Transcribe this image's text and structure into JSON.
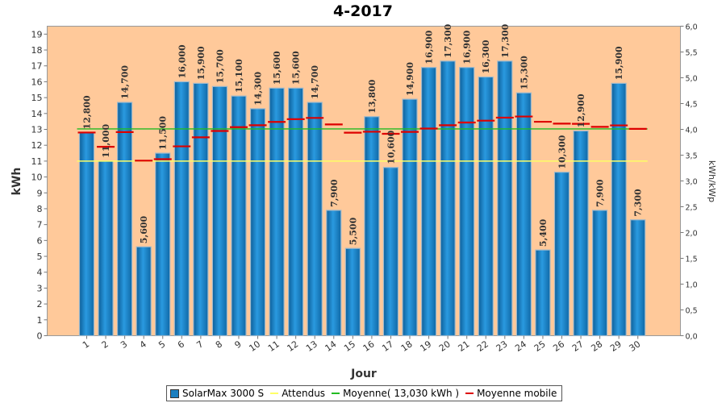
{
  "chart_data": {
    "type": "bar",
    "title": "4-2017",
    "xlabel": "Jour",
    "ylabel": "kWh",
    "y2label": "kWh/kWp",
    "ylim": [
      0,
      19.5
    ],
    "y2lim": [
      0,
      6.0
    ],
    "y_ticks": [
      "0",
      "1",
      "2",
      "3",
      "4",
      "5",
      "6",
      "7",
      "8",
      "9",
      "10",
      "11",
      "12",
      "13",
      "14",
      "15",
      "16",
      "17",
      "18",
      "19"
    ],
    "y2_ticks": [
      "0,0",
      "0,5",
      "1,0",
      "1,5",
      "2,0",
      "2,5",
      "3,0",
      "3,5",
      "4,0",
      "4,5",
      "5,0",
      "5,5",
      "6,0"
    ],
    "categories": [
      "1",
      "2",
      "3",
      "4",
      "5",
      "6",
      "7",
      "8",
      "9",
      "10",
      "11",
      "12",
      "13",
      "14",
      "15",
      "16",
      "17",
      "18",
      "19",
      "20",
      "21",
      "22",
      "23",
      "24",
      "25",
      "26",
      "27",
      "28",
      "29",
      "30"
    ],
    "series": [
      {
        "name": "SolarMax 3000 S",
        "values": [
          12.8,
          11.0,
          14.7,
          5.6,
          11.5,
          16.0,
          15.9,
          15.7,
          15.1,
          14.3,
          15.6,
          15.6,
          14.7,
          7.9,
          5.5,
          13.8,
          10.6,
          14.9,
          16.9,
          17.3,
          16.9,
          16.3,
          17.3,
          15.3,
          5.4,
          10.3,
          12.9,
          7.9,
          15.9,
          7.3
        ],
        "labels": [
          "12,800",
          "11,000",
          "14,700",
          "5,600",
          "11,500",
          "16,000",
          "15,900",
          "15,700",
          "15,100",
          "14,300",
          "15,600",
          "15,600",
          "14,700",
          "7,900",
          "5,500",
          "13,800",
          "10,600",
          "14,900",
          "16,900",
          "17,300",
          "16,900",
          "16,300",
          "17,300",
          "15,300",
          "5,400",
          "10,300",
          "12,900",
          "7,900",
          "15,900",
          "7,300"
        ],
        "color": "#1a7fc0"
      },
      {
        "name": "Attendus",
        "value": 11.0,
        "color": "#ffff66"
      },
      {
        "name": "Moyenne( 13,030 kWh )",
        "value": 13.03,
        "color": "#22bb22"
      },
      {
        "name": "Moyenne mobile",
        "values": [
          12.8,
          11.9,
          12.83,
          11.03,
          11.12,
          11.93,
          12.5,
          12.9,
          13.14,
          13.26,
          13.47,
          13.64,
          13.72,
          13.31,
          12.79,
          12.85,
          12.72,
          12.84,
          13.05,
          13.26,
          13.43,
          13.55,
          13.74,
          13.81,
          13.48,
          13.36,
          13.35,
          13.16,
          13.25,
          13.03
        ],
        "color": "#dd0000"
      }
    ],
    "legend_position": "bottom",
    "plot_background": "#ffc99a",
    "grid": false
  }
}
